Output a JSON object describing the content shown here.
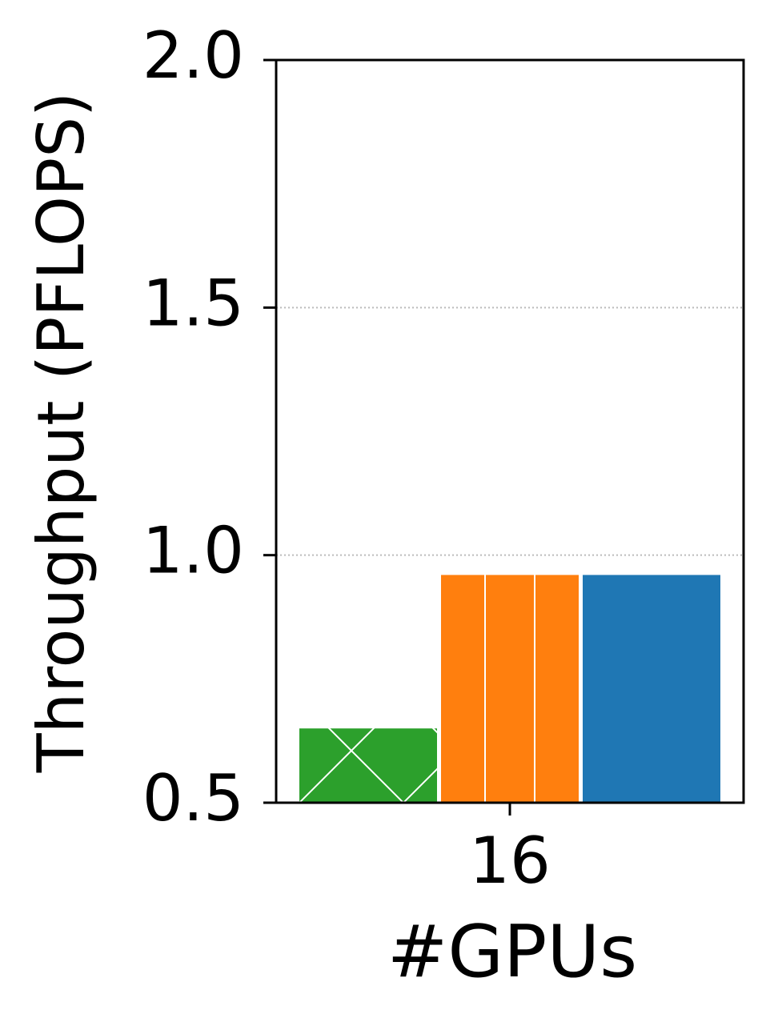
{
  "chart_data": {
    "type": "bar",
    "categories": [
      "16"
    ],
    "xlabel": "#GPUs",
    "ylabel": "Throughput (PFLOPS)",
    "series": [
      {
        "color": "#2ca02c",
        "hatch": "x",
        "values": [
          0.65
        ]
      },
      {
        "color": "#ff7f0e",
        "hatch": "|",
        "values": [
          0.96
        ]
      },
      {
        "color": "#1f77b4",
        "values": [
          0.96
        ]
      }
    ],
    "ylim": [
      0.5,
      2.0
    ],
    "yticks": [
      0.5,
      {
        "value": 1,
        "label": "1.0"
      },
      1.5,
      {
        "value": 2,
        "label": "2.0"
      }
    ],
    "grid": true
  }
}
